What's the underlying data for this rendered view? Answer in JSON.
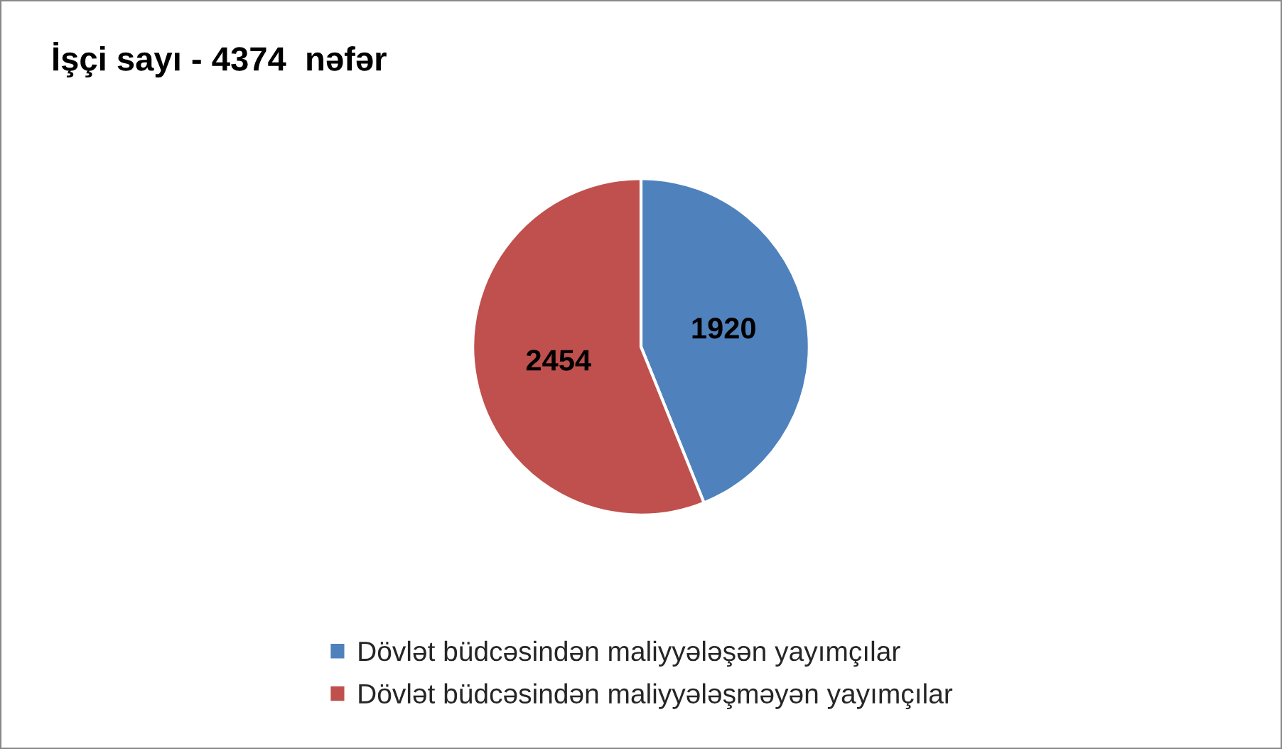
{
  "chart_data": {
    "type": "pie",
    "title": "İşçi sayı - 4374  nəfər",
    "categories": [
      "Dövlət büdcəsindən maliyyələşən yayımçılar",
      "Dövlət büdcəsindən maliyyələşməyən yayımçılar"
    ],
    "values": [
      1920,
      2454
    ],
    "colors": [
      "#4f81bd",
      "#c0504d"
    ],
    "data_labels": true,
    "legend": "bottom"
  }
}
